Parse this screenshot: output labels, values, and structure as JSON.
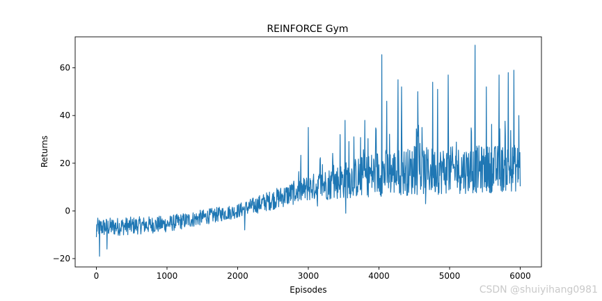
{
  "chart_data": {
    "type": "line",
    "title": "REINFORCE Gym",
    "xlabel": "Episodes",
    "ylabel": "Returns",
    "xlim": [
      -300,
      6300
    ],
    "ylim": [
      -23.5,
      73
    ],
    "xticks": [
      0,
      1000,
      2000,
      3000,
      4000,
      5000,
      6000
    ],
    "yticks": [
      -20,
      0,
      20,
      40,
      60
    ],
    "grid": false,
    "series": [
      {
        "color": "#1f77b4",
        "x_range": [
          0,
          6000
        ],
        "trend": [
          {
            "x": 0,
            "y": -7
          },
          {
            "x": 1000,
            "y": -6
          },
          {
            "x": 1500,
            "y": -4
          },
          {
            "x": 2000,
            "y": -1
          },
          {
            "x": 2500,
            "y": 3
          },
          {
            "x": 3000,
            "y": 9
          },
          {
            "x": 3500,
            "y": 12
          },
          {
            "x": 4000,
            "y": 13
          },
          {
            "x": 4500,
            "y": 14
          },
          {
            "x": 5000,
            "y": 15
          },
          {
            "x": 5500,
            "y": 16
          },
          {
            "x": 6000,
            "y": 17
          }
        ],
        "band_low": [
          {
            "x": 0,
            "y": -11
          },
          {
            "x": 1000,
            "y": -9
          },
          {
            "x": 2000,
            "y": -3
          },
          {
            "x": 3000,
            "y": 4
          },
          {
            "x": 4000,
            "y": 6
          },
          {
            "x": 5000,
            "y": 7
          },
          {
            "x": 6000,
            "y": 8
          }
        ],
        "band_high": [
          {
            "x": 0,
            "y": -3
          },
          {
            "x": 1000,
            "y": -2
          },
          {
            "x": 2000,
            "y": 3
          },
          {
            "x": 3000,
            "y": 15
          },
          {
            "x": 4000,
            "y": 26
          },
          {
            "x": 5000,
            "y": 27
          },
          {
            "x": 6000,
            "y": 28
          }
        ],
        "spikes": [
          {
            "x": 0,
            "y": -11
          },
          {
            "x": 45,
            "y": -19
          },
          {
            "x": 150,
            "y": -16
          },
          {
            "x": 3000,
            "y": 35
          },
          {
            "x": 3450,
            "y": 32
          },
          {
            "x": 3520,
            "y": 38
          },
          {
            "x": 3800,
            "y": 38
          },
          {
            "x": 4040,
            "y": 65.5
          },
          {
            "x": 4110,
            "y": 46
          },
          {
            "x": 4270,
            "y": 55
          },
          {
            "x": 4320,
            "y": 52
          },
          {
            "x": 4550,
            "y": 50
          },
          {
            "x": 4760,
            "y": 54
          },
          {
            "x": 4830,
            "y": 51
          },
          {
            "x": 4980,
            "y": 57
          },
          {
            "x": 5360,
            "y": 69.5
          },
          {
            "x": 5520,
            "y": 52
          },
          {
            "x": 5700,
            "y": 57
          },
          {
            "x": 5830,
            "y": 58
          },
          {
            "x": 5910,
            "y": 59
          },
          {
            "x": 5980,
            "y": 40
          },
          {
            "x": 2100,
            "y": -8
          },
          {
            "x": 3130,
            "y": 2
          },
          {
            "x": 3530,
            "y": -1
          },
          {
            "x": 4660,
            "y": 3
          }
        ]
      }
    ]
  },
  "watermark": "CSDN @shuiyihang0981"
}
